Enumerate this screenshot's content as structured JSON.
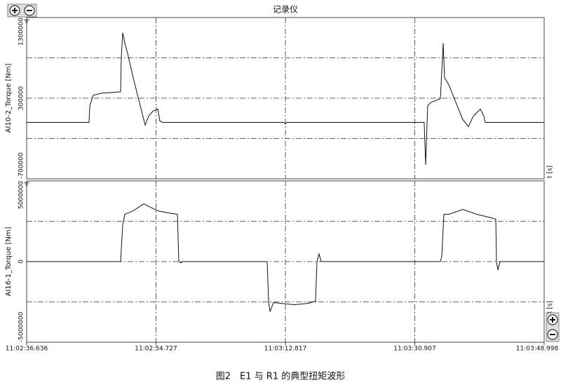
{
  "caption": "图2　E1 与 R1 的典型扭矩波形",
  "chart_data": [
    {
      "type": "line",
      "title": "记录仪",
      "y_label": "AI10-2_Torque [Nm]",
      "x_label": "t [s]",
      "color": "#111111",
      "ylim": [
        -700000,
        1300000
      ],
      "yticks": [
        -700000,
        300000,
        1300000
      ],
      "ygrid": [
        -200000,
        300000,
        800000
      ],
      "x": [
        0,
        8.73,
        8.82,
        9.31,
        10.49,
        13.14,
        13.24,
        13.43,
        13.73,
        14.12,
        14.9,
        15.88,
        16.57,
        17.06,
        17.65,
        18.34,
        18.63,
        19.02,
        35.98,
        36.18,
        36.38,
        55.59,
        55.79,
        56.08,
        56.57,
        57.85,
        58.24,
        58.44,
        59.03,
        60.01,
        60.99,
        61.77,
        62.46,
        63.44,
        63.93,
        64.12,
        72.362
      ],
      "values": [
        0,
        0,
        207000,
        336000,
        362000,
        379000,
        810000,
        1112000,
        983000,
        853000,
        552000,
        207000,
        -34000,
        78000,
        138000,
        164000,
        17000,
        0,
        0,
        -20000,
        0,
        0,
        -526000,
        207000,
        250000,
        293000,
        983000,
        552000,
        466000,
        250000,
        34000,
        -52000,
        78000,
        164000,
        78000,
        0,
        0
      ]
    },
    {
      "type": "line",
      "y_label": "AI16-1_Torque [Nm]",
      "x_label": "t [s]",
      "color": "#111111",
      "xlim": [
        0,
        72.362
      ],
      "xticks": [
        {
          "value": 0,
          "label": "11:02:36.636"
        },
        {
          "value": 18.091,
          "label": "11:02:54.727"
        },
        {
          "value": 36.181,
          "label": "11:03:12.817"
        },
        {
          "value": 54.271,
          "label": "11:03:30.907"
        },
        {
          "value": 72.362,
          "label": "11:03:48.998"
        }
      ],
      "ylim": [
        -5000000,
        5000000
      ],
      "yticks": [
        -5000000,
        0,
        5000000
      ],
      "ygrid": [
        -2500000,
        0,
        2500000
      ],
      "x": [
        0,
        13.14,
        13.43,
        13.73,
        14.9,
        16.37,
        17.35,
        18.34,
        19.81,
        21.08,
        21.28,
        21.57,
        21.77,
        33.63,
        33.83,
        34.02,
        34.51,
        35.49,
        37.45,
        39.42,
        40.4,
        40.59,
        40.89,
        41.18,
        57.85,
        58.05,
        58.34,
        59.03,
        60.99,
        62.95,
        64.91,
        65.6,
        65.69,
        65.89,
        66.18,
        72.362
      ],
      "values": [
        0,
        0,
        2284000,
        2931000,
        3147000,
        3578000,
        3362000,
        3147000,
        3017000,
        2931000,
        0,
        -86000,
        0,
        0,
        -2457000,
        -3103000,
        -2543000,
        -2586000,
        -2672000,
        -2586000,
        -2457000,
        0,
        474000,
        0,
        0,
        345000,
        2931000,
        2931000,
        3233000,
        2931000,
        2716000,
        2629000,
        0,
        -517000,
        0,
        0
      ]
    }
  ]
}
